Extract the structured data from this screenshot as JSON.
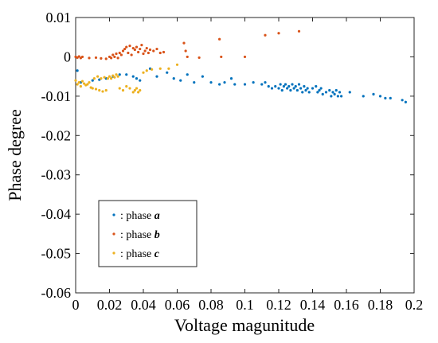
{
  "chart_data": {
    "type": "scatter",
    "xlabel": "Voltage magunitude",
    "ylabel": "Phase degree",
    "xlim": [
      0,
      0.2
    ],
    "ylim": [
      -0.06,
      0.01
    ],
    "xticks": [
      0,
      0.02,
      0.04,
      0.06,
      0.08,
      0.1,
      0.12,
      0.14,
      0.16,
      0.18,
      0.2
    ],
    "xtick_labels": [
      "0",
      "0.02",
      "0.04",
      "0.06",
      "0.08",
      "0.1",
      "0.12",
      "0.14",
      "0.16",
      "0.18",
      "0.2"
    ],
    "yticks": [
      0.01,
      0,
      -0.01,
      -0.02,
      -0.03,
      -0.04,
      -0.05,
      -0.06
    ],
    "ytick_labels": [
      "0.01",
      "0",
      "-0.01",
      "-0.02",
      "-0.03",
      "-0.04",
      "-0.05",
      "-0.06"
    ],
    "grid": false,
    "legend_position": "lower-left",
    "series": [
      {
        "name": "phase",
        "italic_suffix": "a",
        "legend_prefix": ": phase ",
        "color": "#0072BD",
        "x": [
          0.001,
          0.003,
          0.01,
          0.014,
          0.018,
          0.022,
          0.026,
          0.03,
          0.034,
          0.036,
          0.038,
          0.044,
          0.048,
          0.054,
          0.058,
          0.062,
          0.066,
          0.07,
          0.075,
          0.08,
          0.085,
          0.088,
          0.092,
          0.094,
          0.1,
          0.105,
          0.11,
          0.112,
          0.114,
          0.116,
          0.118,
          0.12,
          0.121,
          0.122,
          0.123,
          0.124,
          0.125,
          0.126,
          0.127,
          0.128,
          0.129,
          0.13,
          0.131,
          0.132,
          0.133,
          0.134,
          0.135,
          0.136,
          0.137,
          0.138,
          0.14,
          0.142,
          0.143,
          0.144,
          0.145,
          0.146,
          0.148,
          0.15,
          0.151,
          0.152,
          0.153,
          0.154,
          0.155,
          0.156,
          0.157,
          0.162,
          0.17,
          0.176,
          0.18,
          0.183,
          0.186,
          0.193,
          0.195
        ],
        "y": [
          -0.0035,
          -0.0065,
          -0.006,
          -0.0058,
          -0.0055,
          -0.005,
          -0.0045,
          -0.0045,
          -0.005,
          -0.0055,
          -0.006,
          -0.003,
          -0.005,
          -0.004,
          -0.0055,
          -0.006,
          -0.0045,
          -0.0065,
          -0.005,
          -0.0065,
          -0.007,
          -0.0065,
          -0.0055,
          -0.007,
          -0.007,
          -0.0065,
          -0.007,
          -0.0065,
          -0.0075,
          -0.008,
          -0.0075,
          -0.008,
          -0.007,
          -0.0085,
          -0.0075,
          -0.007,
          -0.008,
          -0.0075,
          -0.0085,
          -0.007,
          -0.008,
          -0.0075,
          -0.0085,
          -0.007,
          -0.008,
          -0.009,
          -0.0075,
          -0.0085,
          -0.008,
          -0.009,
          -0.008,
          -0.0075,
          -0.009,
          -0.0085,
          -0.008,
          -0.0095,
          -0.009,
          -0.0085,
          -0.01,
          -0.009,
          -0.0095,
          -0.0085,
          -0.01,
          -0.009,
          -0.01,
          -0.009,
          -0.01,
          -0.0095,
          -0.01,
          -0.0105,
          -0.0105,
          -0.011,
          -0.0115
        ]
      },
      {
        "name": "phase",
        "italic_suffix": "b",
        "legend_prefix": ": phase ",
        "color": "#D95319",
        "x": [
          0.0,
          0.001,
          0.002,
          0.003,
          0.004,
          0.008,
          0.012,
          0.015,
          0.018,
          0.02,
          0.021,
          0.022,
          0.023,
          0.024,
          0.025,
          0.026,
          0.027,
          0.028,
          0.029,
          0.03,
          0.031,
          0.032,
          0.033,
          0.034,
          0.035,
          0.036,
          0.037,
          0.038,
          0.039,
          0.04,
          0.041,
          0.042,
          0.043,
          0.044,
          0.046,
          0.048,
          0.05,
          0.052,
          0.064,
          0.065,
          0.066,
          0.073,
          0.085,
          0.086,
          0.1,
          0.112,
          0.12,
          0.132
        ],
        "y": [
          0.0,
          -0.0002,
          0.0001,
          -0.0003,
          0.0,
          -0.0003,
          -0.0002,
          -0.0004,
          -0.0005,
          0.0,
          -0.0003,
          0.0005,
          0.0,
          0.0008,
          -0.0003,
          0.001,
          0.0005,
          0.0015,
          0.002,
          0.0025,
          0.001,
          0.0028,
          0.0005,
          0.0022,
          0.0018,
          0.0025,
          0.0012,
          0.002,
          0.003,
          0.0008,
          0.0015,
          0.0022,
          0.001,
          0.0018,
          0.0015,
          0.002,
          0.001,
          0.0012,
          0.0035,
          0.0015,
          0.0,
          -0.0002,
          0.0045,
          0.0,
          0.0,
          0.0055,
          0.006,
          0.0065
        ]
      },
      {
        "name": "phase",
        "italic_suffix": "c",
        "legend_prefix": ": phase ",
        "color": "#EDB120",
        "x": [
          0.0,
          0.001,
          0.002,
          0.003,
          0.004,
          0.005,
          0.006,
          0.007,
          0.008,
          0.009,
          0.01,
          0.011,
          0.012,
          0.013,
          0.014,
          0.015,
          0.016,
          0.017,
          0.018,
          0.019,
          0.02,
          0.021,
          0.022,
          0.023,
          0.024,
          0.025,
          0.026,
          0.028,
          0.03,
          0.032,
          0.034,
          0.035,
          0.036,
          0.037,
          0.038,
          0.04,
          0.042,
          0.045,
          0.05,
          0.055,
          0.06
        ],
        "y": [
          -0.006,
          -0.007,
          -0.0065,
          -0.0075,
          -0.0062,
          -0.0068,
          -0.0072,
          -0.007,
          -0.0065,
          -0.0078,
          -0.008,
          -0.0055,
          -0.0082,
          -0.005,
          -0.0085,
          -0.0055,
          -0.0088,
          -0.0052,
          -0.0085,
          -0.0055,
          -0.005,
          -0.0055,
          -0.0048,
          -0.0052,
          -0.0045,
          -0.005,
          -0.008,
          -0.0085,
          -0.0075,
          -0.008,
          -0.009,
          -0.0085,
          -0.008,
          -0.009,
          -0.0085,
          -0.004,
          -0.0035,
          -0.0032,
          -0.003,
          -0.003,
          -0.002
        ]
      }
    ]
  }
}
